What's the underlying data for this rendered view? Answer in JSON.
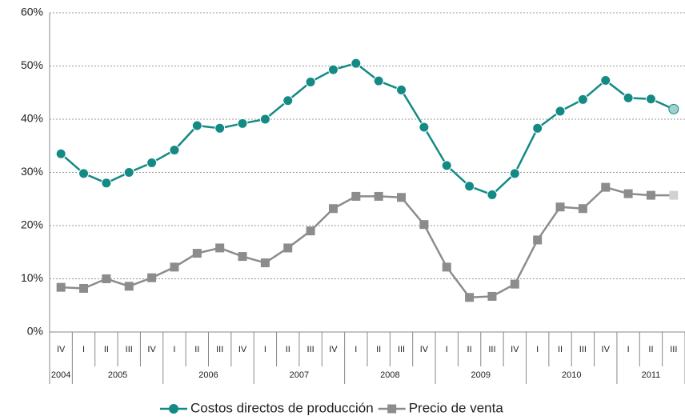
{
  "chart_data": {
    "type": "line",
    "categories": [
      [
        "2004",
        "IV"
      ],
      [
        "2005",
        "I"
      ],
      [
        "2005",
        "II"
      ],
      [
        "2005",
        "III"
      ],
      [
        "2005",
        "IV"
      ],
      [
        "2006",
        "I"
      ],
      [
        "2006",
        "II"
      ],
      [
        "2006",
        "III"
      ],
      [
        "2006",
        "IV"
      ],
      [
        "2007",
        "I"
      ],
      [
        "2007",
        "II"
      ],
      [
        "2007",
        "III"
      ],
      [
        "2007",
        "IV"
      ],
      [
        "2008",
        "I"
      ],
      [
        "2008",
        "II"
      ],
      [
        "2008",
        "III"
      ],
      [
        "2008",
        "IV"
      ],
      [
        "2009",
        "I"
      ],
      [
        "2009",
        "II"
      ],
      [
        "2009",
        "III"
      ],
      [
        "2009",
        "IV"
      ],
      [
        "2010",
        "I"
      ],
      [
        "2010",
        "II"
      ],
      [
        "2010",
        "III"
      ],
      [
        "2010",
        "IV"
      ],
      [
        "2011",
        "I"
      ],
      [
        "2011",
        "II"
      ],
      [
        "2011",
        "III"
      ]
    ],
    "series": [
      {
        "name": "Costos directos de producción",
        "color": "#138a84",
        "marker": "circle",
        "values": [
          33.5,
          29.8,
          28,
          30,
          31.8,
          34.2,
          38.8,
          38.3,
          39.2,
          40,
          43.5,
          47,
          49.3,
          50.5,
          47.2,
          45.5,
          38.5,
          31.3,
          27.4,
          25.8,
          29.8,
          38.3,
          41.5,
          43.7,
          47.3,
          44,
          43.8,
          41.9
        ]
      },
      {
        "name": "Precio de venta",
        "color": "#8c8c8c",
        "marker": "square",
        "values": [
          8.4,
          8.2,
          10,
          8.6,
          10.2,
          12.2,
          14.8,
          15.8,
          14.2,
          13,
          15.8,
          19,
          23.2,
          25.5,
          25.5,
          25.3,
          20.2,
          12.2,
          6.5,
          6.7,
          9,
          17.3,
          23.5,
          23.2,
          27.2,
          26,
          25.7,
          25.7
        ]
      }
    ],
    "ylim": [
      0,
      60
    ],
    "yticks": [
      {
        "value": 0,
        "label": "0%"
      },
      {
        "value": 10,
        "label": "10%"
      },
      {
        "value": 20,
        "label": "20%"
      },
      {
        "value": 30,
        "label": "30%"
      },
      {
        "value": 40,
        "label": "40%"
      },
      {
        "value": 50,
        "label": "50%"
      },
      {
        "value": 60,
        "label": "60%"
      }
    ],
    "grid": true,
    "legend": "bottom"
  }
}
